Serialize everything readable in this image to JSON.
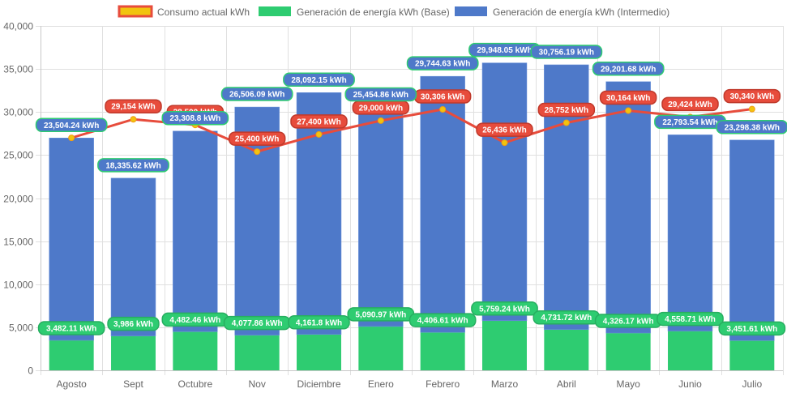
{
  "chart_data": {
    "type": "bar",
    "stacked": true,
    "title": "",
    "xlabel": "",
    "ylabel": "",
    "ylim": [
      0,
      40000
    ],
    "yticks": [
      0,
      5000,
      10000,
      15000,
      20000,
      25000,
      30000,
      35000,
      40000
    ],
    "ytick_labels": [
      "0",
      "5,000",
      "10,000",
      "15,000",
      "20,000",
      "25,000",
      "30,000",
      "35,000",
      "40,000"
    ],
    "grid": true,
    "legend_position": "top-center",
    "unit_suffix": " kWh",
    "categories": [
      "Agosto",
      "Sept",
      "Octubre",
      "Nov",
      "Diciembre",
      "Enero",
      "Febrero",
      "Marzo",
      "Abril",
      "Mayo",
      "Junio",
      "Julio"
    ],
    "series": [
      {
        "name": "Consumo actual kWh",
        "type": "line",
        "color": "#e74c3c",
        "point_color": "#f1c40f",
        "values": [
          27000,
          29154,
          28500,
          25400,
          27400,
          29000,
          30306,
          26436,
          28752,
          30164,
          29424,
          30340
        ],
        "labels": [
          "",
          "29,154 kWh",
          "28,500 kWh",
          "25,400 kWh",
          "27,400 kWh",
          "29,000 kWh",
          "30,306 kWh",
          "26,436 kWh",
          "28,752 kWh",
          "30,164 kWh",
          "29,424 kWh",
          "30,340 kWh"
        ]
      },
      {
        "name": "Generación de energía kWh (Base)",
        "type": "bar",
        "color": "#2ecc71",
        "values": [
          3482.11,
          3986,
          4482.46,
          4077.86,
          4161.8,
          5090.97,
          4406.61,
          5759.24,
          4731.72,
          4326.17,
          4558.71,
          3451.61
        ],
        "labels": [
          "3,482.11 kWh",
          "3,986 kWh",
          "4,482.46 kWh",
          "4,077.86 kWh",
          "4,161.8 kWh",
          "5,090.97 kWh",
          "4,406.61 kWh",
          "5,759.24 kWh",
          "4,731.72 kWh",
          "4,326.17 kWh",
          "4,558.71 kWh",
          "3,451.61 kWh"
        ]
      },
      {
        "name": "Generación de energía kWh (Intermedio)",
        "type": "bar",
        "color": "#4e79c9",
        "values": [
          23504.24,
          18335.62,
          23308.8,
          26506.09,
          28092.15,
          25454.86,
          29744.63,
          29948.05,
          30756.19,
          29201.68,
          22793.54,
          23298.38
        ],
        "labels": [
          "23,504.24 kWh",
          "18,335.62 kWh",
          "23,308.8 kWh",
          "26,506.09 kWh",
          "28,092.15 kWh",
          "25,454.86 kWh",
          "29,744.63 kWh",
          "29,948.05 kWh",
          "30,756.19 kWh",
          "29,201.68 kWh",
          "22,793.54 kWh",
          "23,298.38 kWh"
        ]
      }
    ]
  },
  "legend": {
    "items": [
      {
        "label": "Consumo actual kWh",
        "fill": "#f1c40f",
        "border": "#e74c3c"
      },
      {
        "label": "Generación de energía kWh (Base)",
        "fill": "#2ecc71",
        "border": "#2ecc71"
      },
      {
        "label": "Generación de energía kWh (Intermedio)",
        "fill": "#4e79c9",
        "border": "#4e79c9"
      }
    ]
  }
}
